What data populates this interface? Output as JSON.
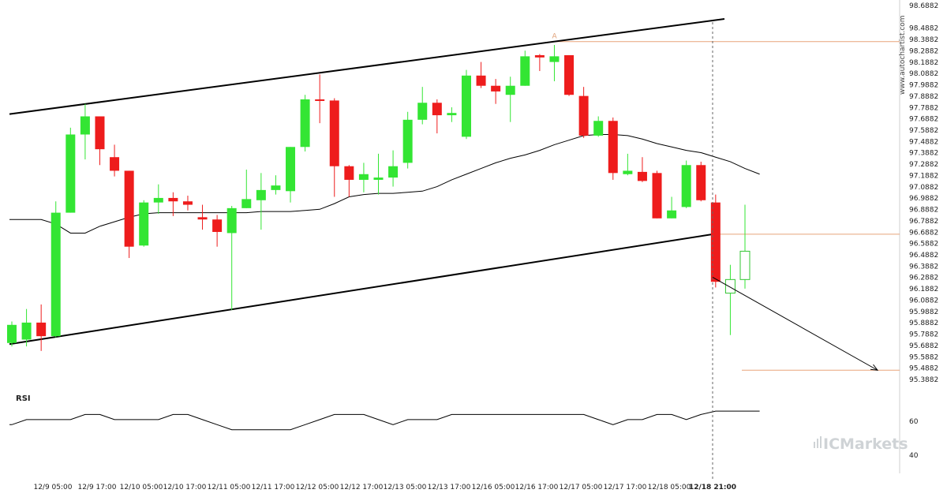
{
  "chart_data": {
    "type": "candlestick",
    "y_axis_labels": [
      "98.6882",
      "98.4882",
      "98.3882",
      "98.2882",
      "98.1882",
      "98.0882",
      "97.9882",
      "97.8882",
      "97.7882",
      "97.6882",
      "97.5882",
      "97.4882",
      "97.3882",
      "97.2882",
      "97.1882",
      "97.0882",
      "96.9882",
      "96.8882",
      "96.7882",
      "96.6882",
      "96.5882",
      "96.4882",
      "96.3882",
      "96.2882",
      "96.1882",
      "96.0882",
      "95.9882",
      "95.8882",
      "95.7882",
      "95.6882",
      "95.5882",
      "95.4882",
      "95.3882"
    ],
    "x_labels": [
      "12/9 05:00",
      "12/9 17:00",
      "12/10 05:00",
      "12/10 17:00",
      "12/11 05:00",
      "12/11 17:00",
      "12/12 05:00",
      "12/12 17:00",
      "12/13 05:00",
      "12/13 17:00",
      "12/16 05:00",
      "12/16 17:00",
      "12/17 05:00",
      "12/17 17:00",
      "12/18 05:00",
      "12/18 21:00"
    ],
    "highlight_x_label": "12/18 21:00",
    "candles": [
      {
        "o": 95.71,
        "c": 95.87,
        "h": 95.9,
        "l": 95.68
      },
      {
        "o": 95.74,
        "c": 95.89,
        "h": 96.01,
        "l": 95.68
      },
      {
        "o": 95.89,
        "c": 95.77,
        "h": 96.05,
        "l": 95.64
      },
      {
        "o": 95.77,
        "c": 96.86,
        "h": 96.96,
        "l": 95.76
      },
      {
        "o": 96.86,
        "c": 97.55,
        "h": 97.61,
        "l": 96.86
      },
      {
        "o": 97.55,
        "c": 97.71,
        "h": 97.82,
        "l": 97.33
      },
      {
        "o": 97.71,
        "c": 97.42,
        "h": 97.71,
        "l": 97.28
      },
      {
        "o": 97.35,
        "c": 97.23,
        "h": 97.46,
        "l": 97.18
      },
      {
        "o": 97.23,
        "c": 96.56,
        "h": 97.23,
        "l": 96.46
      },
      {
        "o": 96.57,
        "c": 96.95,
        "h": 96.97,
        "l": 96.56
      },
      {
        "o": 96.95,
        "c": 96.99,
        "h": 97.11,
        "l": 96.85
      },
      {
        "o": 96.99,
        "c": 96.96,
        "h": 97.04,
        "l": 96.83
      },
      {
        "o": 96.96,
        "c": 96.93,
        "h": 97.01,
        "l": 96.88
      },
      {
        "o": 96.82,
        "c": 96.8,
        "h": 96.93,
        "l": 96.71
      },
      {
        "o": 96.8,
        "c": 96.69,
        "h": 96.84,
        "l": 96.56
      },
      {
        "o": 96.68,
        "c": 96.9,
        "h": 96.92,
        "l": 96.0
      },
      {
        "o": 96.9,
        "c": 96.98,
        "h": 97.24,
        "l": 96.9
      },
      {
        "o": 96.97,
        "c": 97.06,
        "h": 97.21,
        "l": 96.71
      },
      {
        "o": 97.06,
        "c": 97.1,
        "h": 97.19,
        "l": 97.02
      },
      {
        "o": 97.05,
        "c": 97.44,
        "h": 97.44,
        "l": 96.95
      },
      {
        "o": 97.44,
        "c": 97.86,
        "h": 97.9,
        "l": 97.4
      },
      {
        "o": 97.86,
        "c": 97.85,
        "h": 98.08,
        "l": 97.65
      },
      {
        "o": 97.85,
        "c": 97.27,
        "h": 97.87,
        "l": 97.0
      },
      {
        "o": 97.27,
        "c": 97.15,
        "h": 97.28,
        "l": 97.0
      },
      {
        "o": 97.15,
        "c": 97.2,
        "h": 97.3,
        "l": 97.04
      },
      {
        "o": 97.15,
        "c": 97.17,
        "h": 97.38,
        "l": 97.02
      },
      {
        "o": 97.17,
        "c": 97.27,
        "h": 97.41,
        "l": 97.09
      },
      {
        "o": 97.3,
        "c": 97.68,
        "h": 97.75,
        "l": 97.25
      },
      {
        "o": 97.68,
        "c": 97.83,
        "h": 97.97,
        "l": 97.64
      },
      {
        "o": 97.83,
        "c": 97.72,
        "h": 97.86,
        "l": 97.56
      },
      {
        "o": 97.72,
        "c": 97.74,
        "h": 97.79,
        "l": 97.66
      },
      {
        "o": 97.53,
        "c": 98.07,
        "h": 98.12,
        "l": 97.51
      },
      {
        "o": 98.07,
        "c": 97.98,
        "h": 98.19,
        "l": 97.96
      },
      {
        "o": 97.98,
        "c": 97.93,
        "h": 98.04,
        "l": 97.82
      },
      {
        "o": 97.9,
        "c": 97.98,
        "h": 98.06,
        "l": 97.66
      },
      {
        "o": 97.98,
        "c": 98.24,
        "h": 98.29,
        "l": 97.98
      },
      {
        "o": 98.25,
        "c": 98.23,
        "h": 98.26,
        "l": 98.11
      },
      {
        "o": 98.19,
        "c": 98.24,
        "h": 98.34,
        "l": 98.02
      },
      {
        "o": 98.25,
        "c": 97.9,
        "h": 98.25,
        "l": 97.89
      },
      {
        "o": 97.89,
        "c": 97.54,
        "h": 97.97,
        "l": 97.52
      },
      {
        "o": 97.54,
        "c": 97.67,
        "h": 97.71,
        "l": 97.53
      },
      {
        "o": 97.67,
        "c": 97.21,
        "h": 97.7,
        "l": 97.15
      },
      {
        "o": 97.2,
        "c": 97.23,
        "h": 97.38,
        "l": 97.19
      },
      {
        "o": 97.22,
        "c": 97.14,
        "h": 97.35,
        "l": 97.13
      },
      {
        "o": 97.21,
        "c": 96.81,
        "h": 97.23,
        "l": 96.81
      },
      {
        "o": 96.81,
        "c": 96.88,
        "h": 97.0,
        "l": 96.81
      },
      {
        "o": 96.91,
        "c": 97.28,
        "h": 97.32,
        "l": 96.9
      },
      {
        "o": 97.28,
        "c": 96.97,
        "h": 97.31,
        "l": 96.96
      },
      {
        "o": 96.95,
        "c": 96.25,
        "h": 97.02,
        "l": 96.2
      },
      {
        "o": 96.15,
        "c": 96.27,
        "h": 96.4,
        "l": 95.78
      },
      {
        "o": 96.27,
        "c": 96.52,
        "h": 96.93,
        "l": 96.19
      }
    ],
    "ma_line": [
      96.8,
      96.76,
      96.68,
      96.68,
      96.74,
      96.78,
      96.82,
      96.85,
      96.86,
      96.86,
      96.86,
      96.86,
      96.86,
      96.86,
      96.86,
      96.87,
      96.87,
      96.87,
      96.88,
      96.89,
      96.94,
      97.0,
      97.02,
      97.03,
      97.03,
      97.04,
      97.05,
      97.09,
      97.15,
      97.2,
      97.25,
      97.3,
      97.34,
      97.37,
      97.41,
      97.46,
      97.5,
      97.54,
      97.55,
      97.55,
      97.54,
      97.51,
      97.47,
      97.44,
      97.41,
      97.39,
      97.35,
      97.31,
      97.25,
      97.2
    ],
    "channel": {
      "upper": {
        "start": [
          0,
          97.73
        ],
        "end": [
          50,
          98.57
        ]
      },
      "lower": {
        "start": [
          0,
          95.7
        ],
        "end": [
          49,
          96.67
        ]
      }
    },
    "pattern_point_label": "A",
    "resistance_level": 98.37,
    "breakout_level": 96.67,
    "target_level": 95.47,
    "projection": {
      "from": [
        49,
        96.29
      ],
      "to": [
        56,
        95.47
      ]
    },
    "rsi": {
      "label": "RSI",
      "axis_labels": [
        "60",
        "40"
      ],
      "values": [
        58,
        61,
        61,
        61,
        61,
        64,
        64,
        61,
        61,
        61,
        61,
        64,
        64,
        61,
        58,
        55,
        55,
        55,
        55,
        55,
        58,
        61,
        64,
        64,
        64,
        61,
        58,
        61,
        61,
        61,
        64,
        64,
        64,
        64,
        64,
        64,
        64,
        64,
        64,
        64,
        61,
        58,
        61,
        61,
        64,
        64,
        61,
        64,
        66,
        66,
        66,
        66
      ]
    }
  },
  "watermark": {
    "site": "www.autochartist.com",
    "brand": "ICMarkets"
  }
}
